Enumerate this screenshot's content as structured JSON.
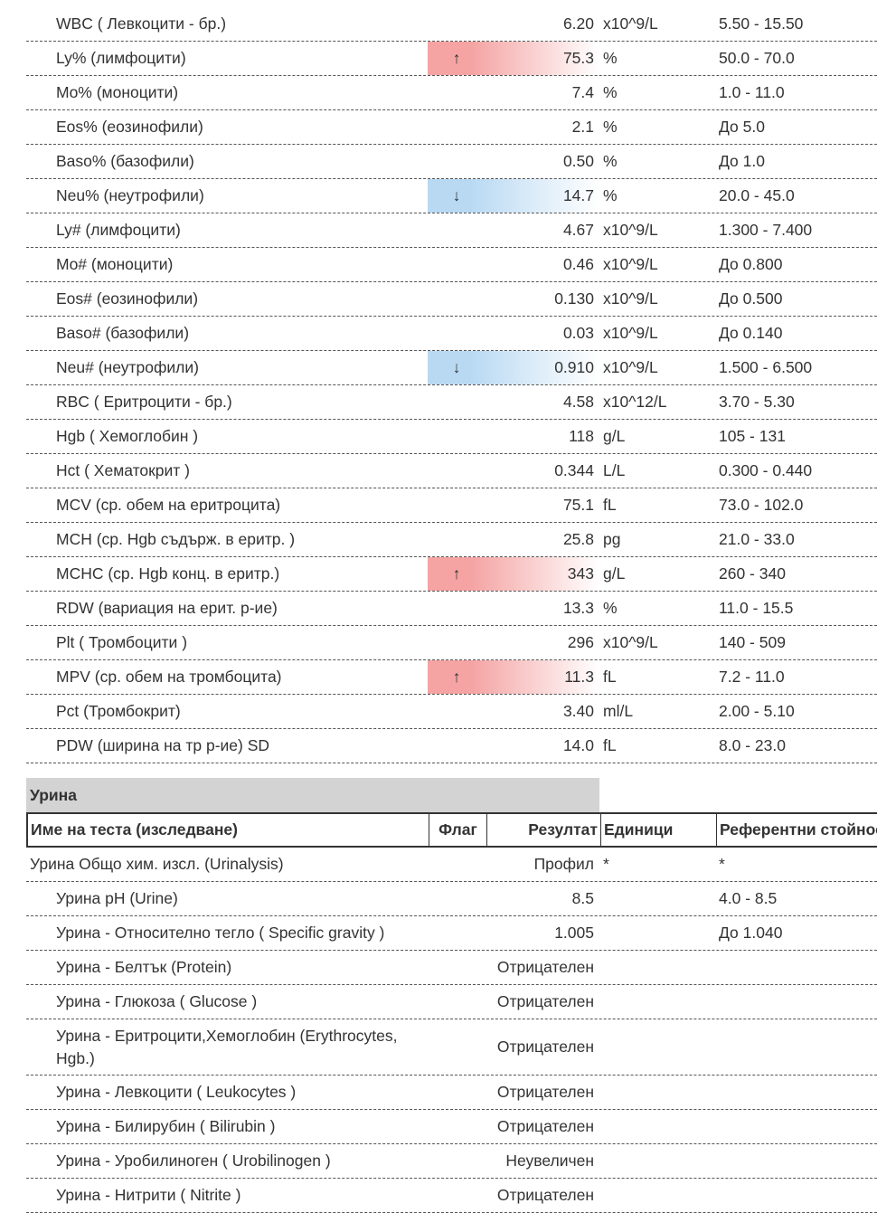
{
  "blood_rows": [
    {
      "name": "WBC ( Левкоцити - бр.)",
      "result": "6.20",
      "unit": "x10^9/L",
      "ref": "5.50 - 15.50"
    },
    {
      "name": "Ly% (лимфоцити)",
      "flag": "↑",
      "flag_color": "#f5a3a3",
      "result": "75.3",
      "unit": "%",
      "ref": "50.0 - 70.0"
    },
    {
      "name": "Mo% (моноцити)",
      "result": "7.4",
      "unit": "%",
      "ref": "1.0 - 11.0"
    },
    {
      "name": "Eos% (еозинофили)",
      "result": "2.1",
      "unit": "%",
      "ref": "До 5.0"
    },
    {
      "name": "Baso% (базофили)",
      "result": "0.50",
      "unit": "%",
      "ref": "До 1.0"
    },
    {
      "name": "Neu% (неутрофили)",
      "flag": "↓",
      "flag_color": "#b9d9f3",
      "result": "14.7",
      "unit": "%",
      "ref": "20.0 - 45.0"
    },
    {
      "name": "Ly# (лимфоцити)",
      "result": "4.67",
      "unit": "x10^9/L",
      "ref": "1.300 - 7.400"
    },
    {
      "name": "Mo# (моноцити)",
      "result": "0.46",
      "unit": "x10^9/L",
      "ref": "До 0.800"
    },
    {
      "name": "Eos# (еозинофили)",
      "result": "0.130",
      "unit": "x10^9/L",
      "ref": "До 0.500"
    },
    {
      "name": "Baso# (базофили)",
      "result": "0.03",
      "unit": "x10^9/L",
      "ref": "До 0.140"
    },
    {
      "name": "Neu# (неутрофили)",
      "flag": "↓",
      "flag_color": "#b9d9f3",
      "result": "0.910",
      "unit": "x10^9/L",
      "ref": "1.500 - 6.500"
    },
    {
      "name": "RBC ( Еритроцити - бр.)",
      "result": "4.58",
      "unit": "x10^12/L",
      "ref": "3.70 - 5.30"
    },
    {
      "name": "Hgb ( Хемоглобин )",
      "result": "118",
      "unit": "g/L",
      "ref": "105 - 131"
    },
    {
      "name": "Hct ( Хематокрит )",
      "result": "0.344",
      "unit": "L/L",
      "ref": "0.300 - 0.440"
    },
    {
      "name": "MCV (ср. обем на еритроцита)",
      "result": "75.1",
      "unit": "fL",
      "ref": "73.0 - 102.0"
    },
    {
      "name": "MCH (ср. Hgb съдърж. в еритр. )",
      "result": "25.8",
      "unit": "pg",
      "ref": "21.0 - 33.0"
    },
    {
      "name": "MCHC (ср. Hgb конц. в еритр.)",
      "flag": "↑",
      "flag_color": "#f5a3a3",
      "result": "343",
      "unit": "g/L",
      "ref": "260 - 340"
    },
    {
      "name": "RDW (вариация на ерит. р-ие)",
      "result": "13.3",
      "unit": "%",
      "ref": "11.0 - 15.5"
    },
    {
      "name": "Plt ( Тромбоцити )",
      "result": "296",
      "unit": "x10^9/L",
      "ref": "140 - 509"
    },
    {
      "name": "MPV (ср. обем на тромбоцита)",
      "flag": "↑",
      "flag_color": "#f5a3a3",
      "result": "11.3",
      "unit": "fL",
      "ref": "7.2 - 11.0"
    },
    {
      "name": "Pct (Тромбокрит)",
      "result": "3.40",
      "unit": "ml/L",
      "ref": "2.00 - 5.10"
    },
    {
      "name": "PDW (ширина на тр р-ие) SD",
      "result": "14.0",
      "unit": "fL",
      "ref": "8.0 - 23.0"
    }
  ],
  "urine": {
    "title": "Урина",
    "headers": [
      "Име на теста (изследване)",
      "Флаг",
      "Резултат",
      "Единици",
      "Референтни стойнос"
    ],
    "rows": [
      {
        "name": "Урина Общо хим. изсл. (Urinalysis)",
        "result": "Профил",
        "unit": "*",
        "ref": "*"
      },
      {
        "name": "Урина pH (Urine)",
        "result": "8.5",
        "ref": "4.0 - 8.5"
      },
      {
        "name": "Урина - Относително тегло ( Specific gravity )",
        "result": "1.005",
        "ref": "До 1.040"
      },
      {
        "name": "Урина - Белтък (Protein)",
        "result": "Отрицателен"
      },
      {
        "name": "Урина - Глюкоза ( Glucose )",
        "result": "Отрицателен"
      },
      {
        "name": "Урина - Еритроцити,Хемоглобин (Erythrocytes, Hgb.)",
        "result": "Отрицателен"
      },
      {
        "name": "Урина - Левкоцити ( Leukocytes )",
        "result": "Отрицателен"
      },
      {
        "name": "Урина - Билирубин ( Bilirubin )",
        "result": "Отрицателен"
      },
      {
        "name": "Урина - Уробилиноген ( Urobilinogen )",
        "result": "Неувеличен"
      },
      {
        "name": "Урина - Нитрити ( Nitrite )",
        "result": "Отрицателен"
      }
    ]
  }
}
